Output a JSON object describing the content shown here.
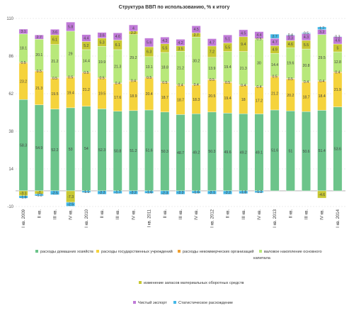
{
  "chart_data": {
    "type": "bar",
    "title": "Структура ВВП по использованию, % к итогу",
    "xlabel": "",
    "ylabel": "",
    "ylim": [
      -10,
      110
    ],
    "y_ticks": [
      -10,
      14,
      38,
      62,
      86,
      110
    ],
    "grid": true,
    "legend_position": "bottom",
    "categories": [
      "I кв. 2009",
      "II кв.",
      "III кв.",
      "IV кв.",
      "I кв. 2010",
      "II кв.",
      "III кв.",
      "IV кв.",
      "I кв. 2011",
      "II кв.",
      "III кв.",
      "IV кв.",
      "I кв. 2012",
      "II кв.",
      "III кв.",
      "IV кв.",
      "I кв. 2013",
      "II кв.",
      "III кв.",
      "IV кв.",
      "I кв. 2014"
    ],
    "series": [
      {
        "name": "расходы домашних хозяйств",
        "color": "#6cc48a",
        "values": [
          58.3,
          54.9,
          52.2,
          53,
          54,
          52.3,
          50.8,
          51.2,
          51.6,
          50.3,
          48.7,
          49.2,
          50.3,
          49.6,
          49.2,
          49.1,
          51.6,
          51,
          50.6,
          51.4,
          53.6
        ]
      },
      {
        "name": "расходы государственных учреждений",
        "color": "#f5d33c",
        "values": [
          23.2,
          21.3,
          19.5,
          19.4,
          21.2,
          19.5,
          17.6,
          18.9,
          20.4,
          18.7,
          18.7,
          18.3,
          20.5,
          19.4,
          18,
          17.2,
          21.2,
          20.2,
          18.7,
          18.4,
          21.9
        ]
      },
      {
        "name": "расходы некоммерческих организаций",
        "color": "#f0a030",
        "values": [
          0.5,
          0.5,
          0.5,
          0.5,
          0.5,
          0.5,
          0.4,
          0.4,
          0.5,
          0.5,
          0.4,
          0.4,
          0.5,
          0.5,
          0.4,
          0.4,
          0.5,
          0.5,
          0.4,
          0.4,
          0.4
        ]
      },
      {
        "name": "валовое накопление основного капитала",
        "color": "#b8e87a",
        "values": [
          18.1,
          20.1,
          21.2,
          29,
          14.4,
          19.9,
          21.3,
          29.2,
          13.1,
          18.8,
          21.2,
          30.2,
          13.9,
          19.4,
          21.3,
          30,
          14.4,
          19.6,
          20.8,
          29.5,
          12.8
        ]
      },
      {
        "name": "изменение запасов материальных оборотных средств",
        "color": "#c8c832",
        "values": [
          -3.1,
          -2,
          6.1,
          -7.3,
          5.2,
          5.3,
          6.1,
          2.2,
          6.3,
          5.5,
          3.5,
          2.7,
          7.2,
          5.5,
          9.4,
          0.5,
          4.9,
          4.6,
          5.5,
          -4.6,
          5
        ]
      },
      {
        "name": "Чистый экспорт",
        "color": "#c07ad8",
        "values": [
          3.1,
          2.7,
          3.6,
          5.8,
          4.4,
          3.6,
          4.6,
          4,
          5.6,
          4.3,
          4.2,
          4.5,
          4.7,
          5.1,
          4.5,
          4.4,
          4.7,
          3.3,
          4.3,
          3.2,
          4.6
        ]
      },
      {
        "name": "Статистическое расхождение",
        "color": "#44b8e8",
        "values": [
          -1.6,
          -1.2,
          -2.5,
          -2.5,
          -1.1,
          -2.2,
          -1.7,
          -2.2,
          -1.6,
          -2.3,
          -2.2,
          -1.6,
          -2.1,
          -2.2,
          -1.8,
          -1.2,
          2.7,
          0.4,
          0.5,
          1.7,
          0.3
        ]
      }
    ]
  }
}
